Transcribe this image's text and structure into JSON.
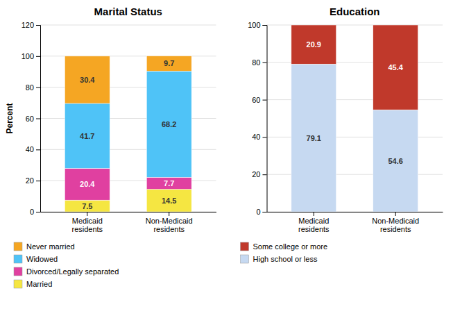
{
  "chart_data": [
    {
      "type": "bar",
      "stacked": true,
      "title": "Marital Status",
      "ylabel": "Percent",
      "categories": [
        "Medicaid\nresidents",
        "Non-Medicaid\nresidents"
      ],
      "series": [
        {
          "name": "Married",
          "color": "#f5e642",
          "values": [
            7.5,
            14.5
          ]
        },
        {
          "name": "Divorced/Legally separated",
          "color": "#e040a0",
          "values": [
            20.4,
            7.7
          ]
        },
        {
          "name": "Widowed",
          "color": "#4fc3f7",
          "values": [
            41.7,
            68.2
          ]
        },
        {
          "name": "Never married",
          "color": "#f5a623",
          "values": [
            30.4,
            9.7
          ]
        }
      ],
      "ylim": [
        0,
        120
      ],
      "yticks": [
        0,
        20,
        40,
        60,
        80,
        100,
        120
      ],
      "grid": true,
      "data_labels": true,
      "legend": "bottom"
    },
    {
      "type": "bar",
      "stacked": true,
      "title": "Education",
      "categories": [
        "Medicaid\nresidents",
        "Non-Medicaid\nresidents"
      ],
      "series": [
        {
          "name": "High school or less",
          "color": "#c6d9f1",
          "values": [
            79.1,
            54.6
          ]
        },
        {
          "name": "Some college or more",
          "color": "#c0392b",
          "values": [
            20.9,
            45.4
          ]
        }
      ],
      "ylim": [
        0,
        100
      ],
      "yticks": [
        0,
        20,
        40,
        60,
        80,
        100
      ],
      "grid": true,
      "data_labels": true,
      "legend": "bottom"
    }
  ]
}
